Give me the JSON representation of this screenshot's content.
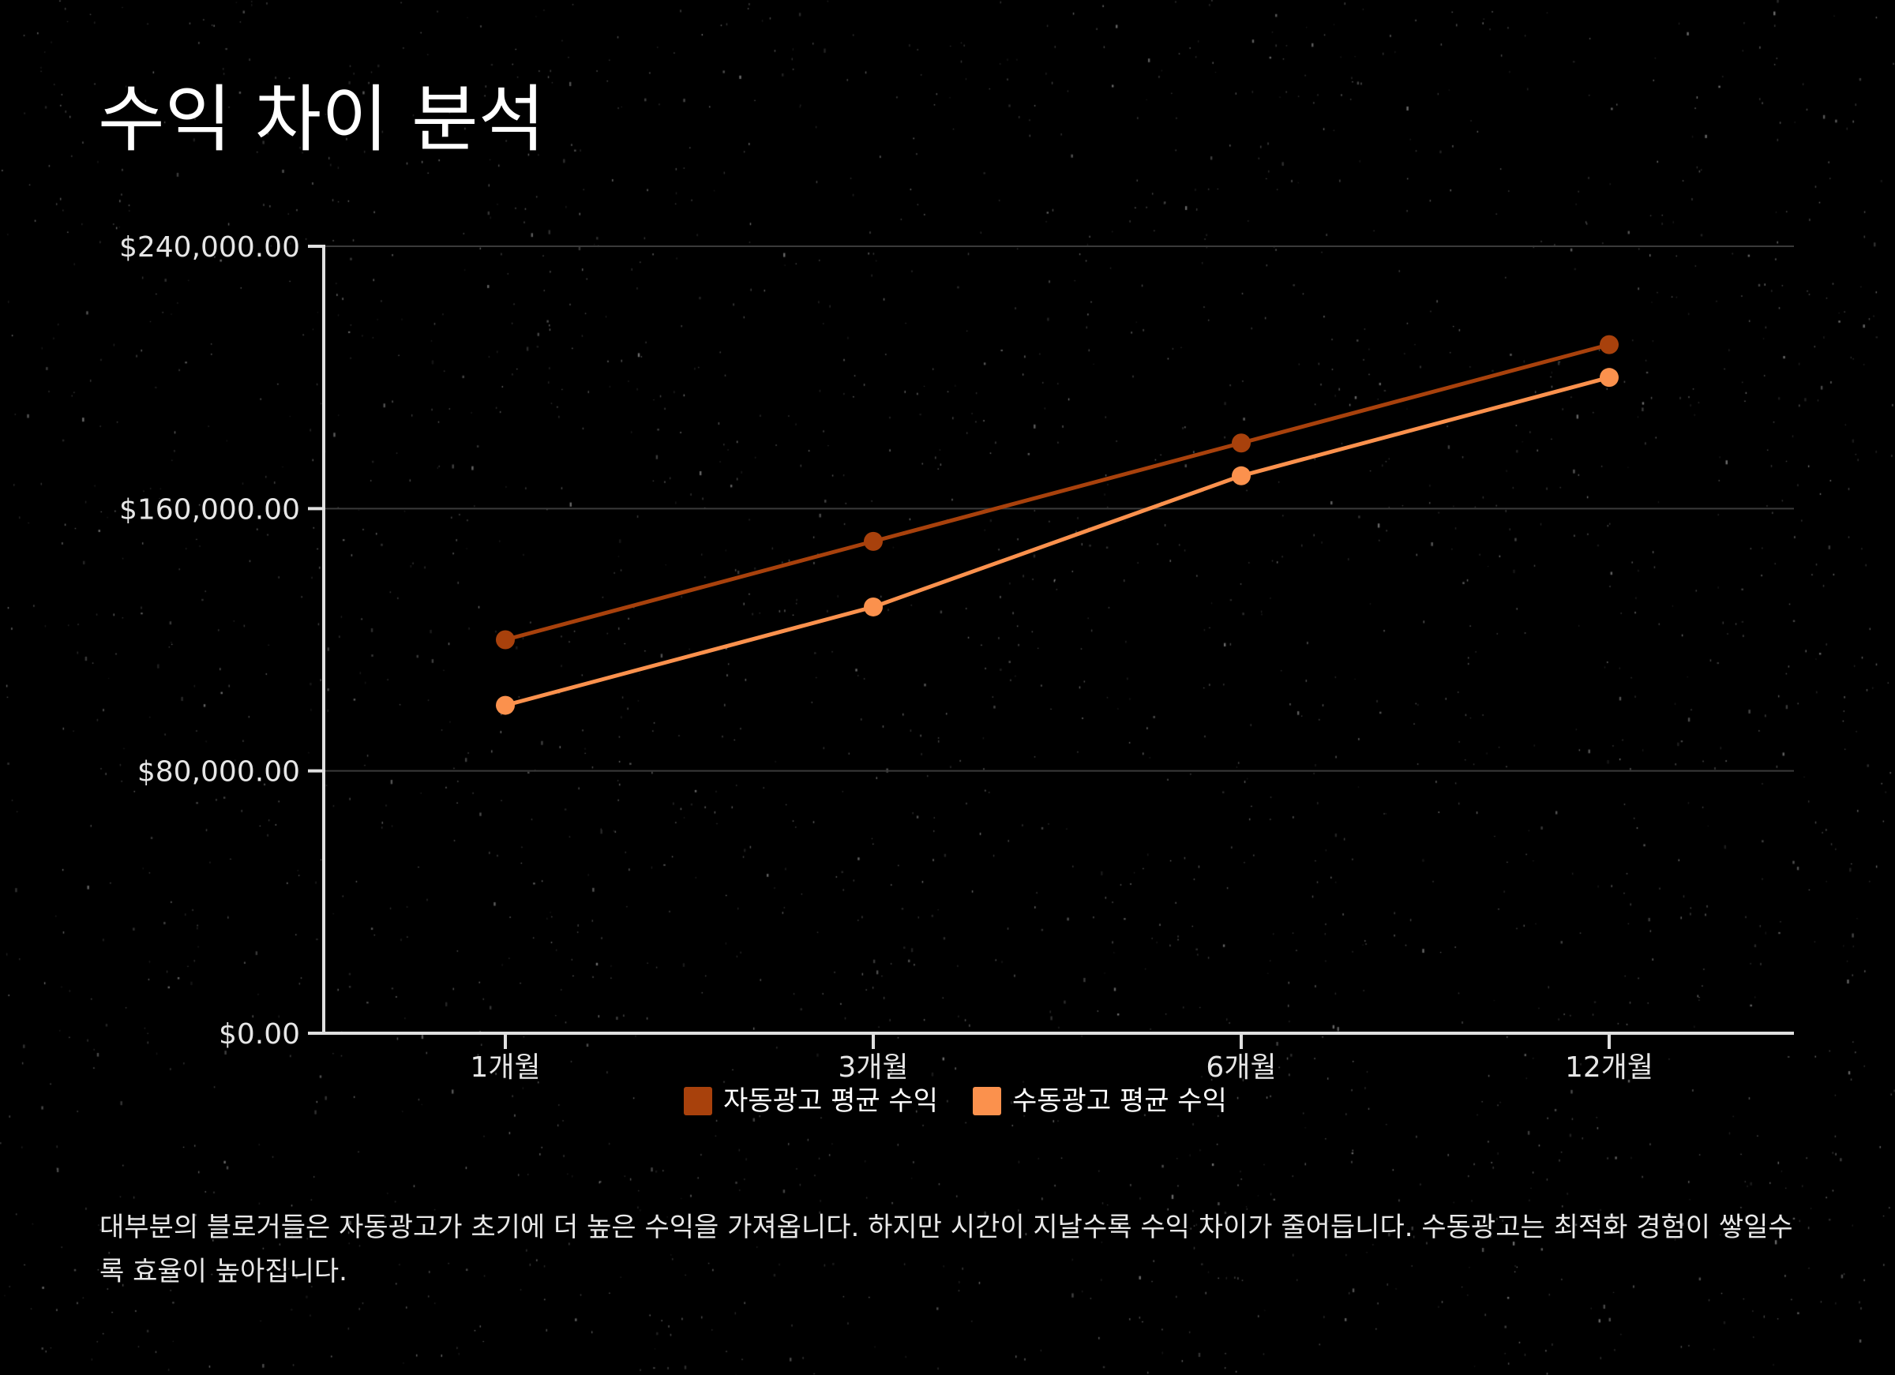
{
  "title": "수익 차이 분석",
  "note": "대부분의 블로거들은 자동광고가 초기에 더 높은 수익을 가져옵니다. 하지만 시간이 지날수록 수익 차이가 줄어듭니다. 수동광고는 최적화 경험이 쌓일수록 효율이 높아집니다.",
  "colors": {
    "background": "#000000",
    "auto": "#a8410c",
    "manual": "#fb914d",
    "axis": "#e0e0e0",
    "grid": "#3a3a3a"
  },
  "chart_data": {
    "type": "line",
    "categories": [
      "1개월",
      "3개월",
      "6개월",
      "12개월"
    ],
    "series": [
      {
        "name": "자동광고 평균 수익",
        "values": [
          120000,
          150000,
          180000,
          210000
        ]
      },
      {
        "name": "수동광고 평균 수익",
        "values": [
          100000,
          130000,
          170000,
          200000
        ]
      }
    ],
    "ylim": [
      0,
      240000
    ],
    "yticks": [
      0,
      80000,
      160000,
      240000
    ],
    "ytick_labels": [
      "$0.00",
      "$80,000.00",
      "$160,000.00",
      "$240,000.00"
    ],
    "grid": true,
    "legend_position": "bottom-center",
    "xlabel": "",
    "ylabel": ""
  }
}
